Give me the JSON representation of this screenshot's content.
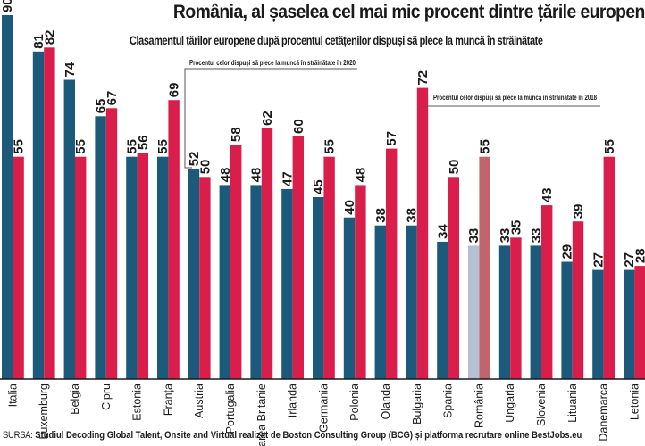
{
  "chart_data": {
    "type": "bar",
    "title": "România, al șaselea cel mai mic procent dintre țările europene",
    "subtitle": "Clasamentul țărilor europene după procentul cetățenilor dispuși să plece la muncă în străinătate",
    "xlabel": "",
    "ylabel": "",
    "ylim": [
      0,
      90
    ],
    "grid": false,
    "categories": [
      "Italia",
      "Luxemburg",
      "Belgia",
      "Cipru",
      "Estonia",
      "Franța",
      "Austria",
      "Portugalia",
      "Marea Britanie",
      "Irlanda",
      "Germania",
      "Polonia",
      "Olanda",
      "Bulgaria",
      "Spania",
      "România",
      "Ungaria",
      "Slovenia",
      "Lituania",
      "Danemarca",
      "Letonia"
    ],
    "highlight_category": "România",
    "series": [
      {
        "name": "Procentul celor dispuși să plece la muncă în străinătate în 2020",
        "color": "#1c5a7b",
        "highlight_color": "#b3c1d2",
        "values": [
          90,
          81,
          74,
          65,
          55,
          55,
          52,
          48,
          48,
          47,
          45,
          40,
          38,
          38,
          34,
          33,
          33,
          33,
          29,
          27,
          27
        ]
      },
      {
        "name": "Procentul celor dispuși să plece la muncă în străinătate în 2018",
        "color": "#d91e4c",
        "highlight_color": "#c2646c",
        "values": [
          55,
          82,
          55,
          67,
          56,
          69,
          50,
          58,
          62,
          60,
          55,
          48,
          57,
          72,
          50,
          55,
          35,
          43,
          39,
          55,
          28
        ]
      }
    ],
    "annotations": [
      {
        "text": "Procentul celor dispuși să plece la muncă în străinătate în 2020",
        "points_to": "Austria 2020 bar"
      },
      {
        "text": "Procentul celor dispuși să plece la muncă în străinătate în 2018",
        "points_to": "Bulgaria 2018 bar"
      }
    ]
  },
  "source": {
    "label": "SURSA:",
    "text": "Studiul Decoding Global Talent, Onsite and Virtual realizat de Boston Consulting Group (BCG) și platforma recrutare online BestJobs.eu"
  }
}
